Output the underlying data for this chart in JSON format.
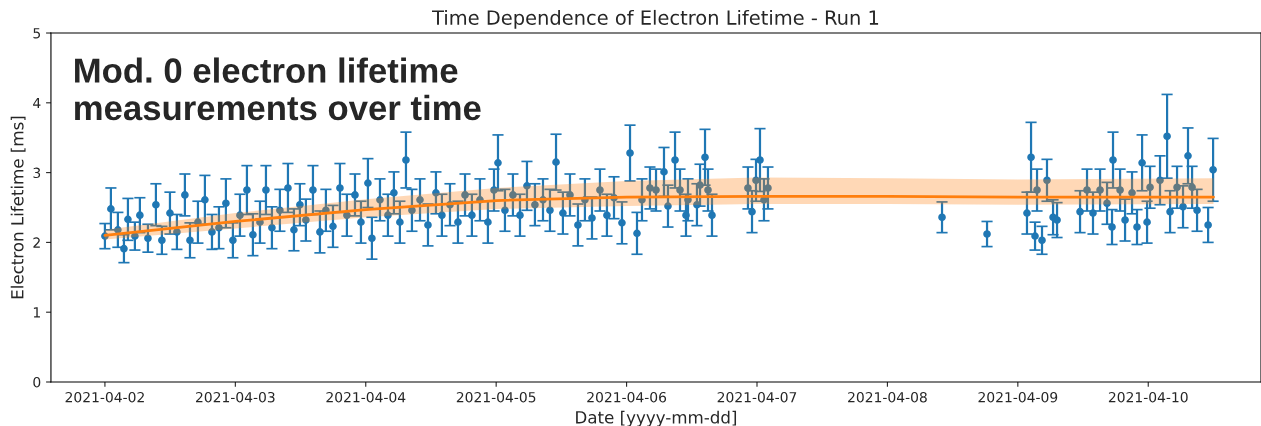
{
  "chart_data": {
    "type": "scatter",
    "title": "Time Dependence of Electron Lifetime - Run 1",
    "xlabel": "Date [yyyy-mm-dd]",
    "ylabel": "Electron Lifetime [ms]",
    "annotations": [
      "Mod. 0 electron lifetime\nmeasurements over time"
    ],
    "xlim": [
      "2021-04-01T14:04",
      "2021-04-10T20:45"
    ],
    "xticks": [
      {
        "value": "2021-04-02",
        "label": "2021-04-02"
      },
      {
        "value": "2021-04-03",
        "label": "2021-04-03"
      },
      {
        "value": "2021-04-04",
        "label": "2021-04-04"
      },
      {
        "value": "2021-04-05",
        "label": "2021-04-05"
      },
      {
        "value": "2021-04-06",
        "label": "2021-04-06"
      },
      {
        "value": "2021-04-07",
        "label": "2021-04-07"
      },
      {
        "value": "2021-04-08",
        "label": "2021-04-08"
      },
      {
        "value": "2021-04-09",
        "label": "2021-04-09"
      },
      {
        "value": "2021-04-10",
        "label": "2021-04-10"
      }
    ],
    "ylim": [
      0,
      5
    ],
    "yticks": [
      0,
      1,
      2,
      3,
      4,
      5
    ],
    "grid": false,
    "legend": false,
    "series": [
      {
        "marker": "circle",
        "color": "#1f77b4",
        "x": [
          "2021-04-02T00:00",
          "2021-04-02T01:06",
          "2021-04-02T02:23",
          "2021-04-02T03:30",
          "2021-04-02T04:14",
          "2021-04-02T05:31",
          "2021-04-02T06:26",
          "2021-04-02T07:55",
          "2021-04-02T09:23",
          "2021-04-02T10:29",
          "2021-04-02T11:58",
          "2021-04-02T13:15",
          "2021-04-02T14:43",
          "2021-04-02T15:39",
          "2021-04-02T17:07",
          "2021-04-02T18:24",
          "2021-04-02T19:42",
          "2021-04-02T20:59",
          "2021-04-02T22:16",
          "2021-04-02T23:33",
          "2021-04-03T00:51",
          "2021-04-03T02:08",
          "2021-04-03T03:14",
          "2021-04-03T04:32",
          "2021-04-03T05:38",
          "2021-04-03T06:44",
          "2021-04-03T08:12",
          "2021-04-03T09:41",
          "2021-04-03T10:47",
          "2021-04-03T11:53",
          "2021-04-03T12:59",
          "2021-04-03T14:17",
          "2021-04-03T15:34",
          "2021-04-03T16:40",
          "2021-04-03T17:58",
          "2021-04-03T19:15",
          "2021-04-03T20:32",
          "2021-04-03T22:01",
          "2021-04-03T23:07",
          "2021-04-04T00:24",
          "2021-04-04T01:08",
          "2021-04-04T02:37",
          "2021-04-04T04:05",
          "2021-04-04T05:11",
          "2021-04-04T06:17",
          "2021-04-04T07:24",
          "2021-04-04T08:30",
          "2021-04-04T09:59",
          "2021-04-04T11:27",
          "2021-04-04T12:55",
          "2021-04-04T14:01",
          "2021-04-04T15:30",
          "2021-04-04T16:58",
          "2021-04-04T18:16",
          "2021-04-04T19:32",
          "2021-04-04T21:01",
          "2021-04-04T22:29",
          "2021-04-04T23:36",
          "2021-04-05T00:20",
          "2021-04-05T01:37",
          "2021-04-05T03:05",
          "2021-04-05T04:23",
          "2021-04-05T05:40",
          "2021-04-05T07:08",
          "2021-04-05T08:37",
          "2021-04-05T09:54",
          "2021-04-05T11:01",
          "2021-04-05T12:17",
          "2021-04-05T13:35",
          "2021-04-05T15:03",
          "2021-04-05T16:20",
          "2021-04-05T17:38",
          "2021-04-05T19:06",
          "2021-04-05T20:23",
          "2021-04-05T21:41",
          "2021-04-05T23:09",
          "2021-04-06T00:38",
          "2021-04-06T01:55",
          "2021-04-06T02:50",
          "2021-04-06T04:18",
          "2021-04-06T05:25",
          "2021-04-06T06:53",
          "2021-04-06T07:37",
          "2021-04-06T08:55",
          "2021-04-06T09:50",
          "2021-04-06T10:56",
          "2021-04-06T11:18",
          "2021-04-06T12:57",
          "2021-04-06T13:31",
          "2021-04-06T14:26",
          "2021-04-06T14:59",
          "2021-04-06T15:43",
          "2021-04-06T22:20",
          "2021-04-06T23:05",
          "2021-04-06T23:49",
          "2021-04-07T00:33",
          "2021-04-07T01:17",
          "2021-04-07T02:01",
          "2021-04-08T10:03",
          "2021-04-08T18:20",
          "2021-04-09T01:41",
          "2021-04-09T02:26",
          "2021-04-09T03:10",
          "2021-04-09T03:32",
          "2021-04-09T04:27",
          "2021-04-09T05:22",
          "2021-04-09T06:29",
          "2021-04-09T07:13",
          "2021-04-09T11:27",
          "2021-04-09T12:44",
          "2021-04-09T13:50",
          "2021-04-09T15:08",
          "2021-04-09T16:25",
          "2021-04-09T17:20",
          "2021-04-09T17:31",
          "2021-04-09T18:49",
          "2021-04-09T19:44",
          "2021-04-09T21:01",
          "2021-04-09T21:56",
          "2021-04-09T22:52",
          "2021-04-09T23:47",
          "2021-04-10T00:20",
          "2021-04-10T02:10",
          "2021-04-10T03:28",
          "2021-04-10T04:01",
          "2021-04-10T05:18",
          "2021-04-10T06:24",
          "2021-04-10T07:19",
          "2021-04-10T08:04",
          "2021-04-10T08:59",
          "2021-04-10T11:01",
          "2021-04-10T11:56"
        ],
        "values": [
          2.09,
          2.48,
          2.18,
          1.91,
          2.33,
          2.09,
          2.39,
          2.06,
          2.54,
          2.03,
          2.42,
          2.15,
          2.68,
          2.03,
          2.29,
          2.61,
          2.15,
          2.21,
          2.56,
          2.03,
          2.39,
          2.75,
          2.11,
          2.29,
          2.75,
          2.21,
          2.46,
          2.78,
          2.18,
          2.54,
          2.32,
          2.75,
          2.15,
          2.46,
          2.23,
          2.78,
          2.39,
          2.68,
          2.29,
          2.85,
          2.06,
          2.61,
          2.39,
          2.71,
          2.29,
          3.18,
          2.46,
          2.61,
          2.25,
          2.71,
          2.39,
          2.54,
          2.29,
          2.68,
          2.39,
          2.61,
          2.29,
          2.75,
          3.14,
          2.46,
          2.68,
          2.39,
          2.81,
          2.54,
          2.61,
          2.46,
          3.15,
          2.42,
          2.68,
          2.25,
          2.61,
          2.35,
          2.75,
          2.39,
          2.64,
          2.28,
          3.28,
          2.13,
          2.61,
          2.78,
          2.75,
          3.01,
          2.52,
          3.18,
          2.75,
          2.39,
          2.61,
          2.54,
          2.82,
          3.22,
          2.75,
          2.39,
          2.78,
          2.44,
          2.89,
          3.18,
          2.61,
          2.78,
          2.36,
          2.12,
          2.42,
          3.22,
          2.09,
          2.75,
          2.03,
          2.89,
          2.36,
          2.32,
          2.44,
          2.75,
          2.42,
          2.75,
          2.56,
          2.22,
          3.18,
          2.75,
          2.32,
          2.71,
          2.22,
          3.14,
          2.29,
          2.79,
          2.89,
          3.52,
          2.44,
          2.79,
          2.51,
          3.24,
          2.79,
          2.46,
          2.25,
          3.04
        ],
        "errors": [
          0.18,
          0.3,
          0.25,
          0.2,
          0.3,
          0.2,
          0.25,
          0.2,
          0.3,
          0.2,
          0.3,
          0.25,
          0.3,
          0.25,
          0.3,
          0.35,
          0.25,
          0.3,
          0.35,
          0.25,
          0.3,
          0.35,
          0.3,
          0.3,
          0.35,
          0.3,
          0.3,
          0.35,
          0.3,
          0.3,
          0.3,
          0.35,
          0.3,
          0.3,
          0.3,
          0.35,
          0.3,
          0.3,
          0.3,
          0.35,
          0.3,
          0.3,
          0.3,
          0.3,
          0.3,
          0.4,
          0.3,
          0.3,
          0.3,
          0.3,
          0.3,
          0.3,
          0.3,
          0.3,
          0.3,
          0.3,
          0.3,
          0.3,
          0.4,
          0.3,
          0.3,
          0.3,
          0.35,
          0.3,
          0.3,
          0.3,
          0.4,
          0.3,
          0.3,
          0.3,
          0.3,
          0.3,
          0.3,
          0.3,
          0.3,
          0.3,
          0.4,
          0.3,
          0.3,
          0.3,
          0.3,
          0.35,
          0.3,
          0.4,
          0.3,
          0.3,
          0.3,
          0.3,
          0.3,
          0.4,
          0.3,
          0.3,
          0.3,
          0.3,
          0.3,
          0.45,
          0.3,
          0.3,
          0.22,
          0.18,
          0.3,
          0.5,
          0.2,
          0.3,
          0.2,
          0.3,
          0.25,
          0.25,
          0.3,
          0.3,
          0.3,
          0.3,
          0.3,
          0.25,
          0.4,
          0.3,
          0.3,
          0.3,
          0.25,
          0.4,
          0.3,
          0.3,
          0.35,
          0.6,
          0.3,
          0.3,
          0.3,
          0.4,
          0.3,
          0.3,
          0.25,
          0.45
        ]
      },
      {
        "type": "line",
        "color": "#ff7f0e",
        "x": [
          "2021-04-02T00:00",
          "2021-04-03T00:00",
          "2021-04-04T00:00",
          "2021-04-05T00:00",
          "2021-04-06T00:00",
          "2021-04-07T00:00",
          "2021-04-08T00:00",
          "2021-04-09T00:00",
          "2021-04-10T12:00"
        ],
        "values": [
          2.1,
          2.3,
          2.47,
          2.6,
          2.65,
          2.66,
          2.66,
          2.65,
          2.65
        ],
        "lower": [
          2.04,
          2.2,
          2.36,
          2.48,
          2.52,
          2.55,
          2.55,
          2.54,
          2.55
        ],
        "upper": [
          2.18,
          2.42,
          2.62,
          2.78,
          2.88,
          2.93,
          2.92,
          2.9,
          2.92
        ]
      }
    ]
  }
}
